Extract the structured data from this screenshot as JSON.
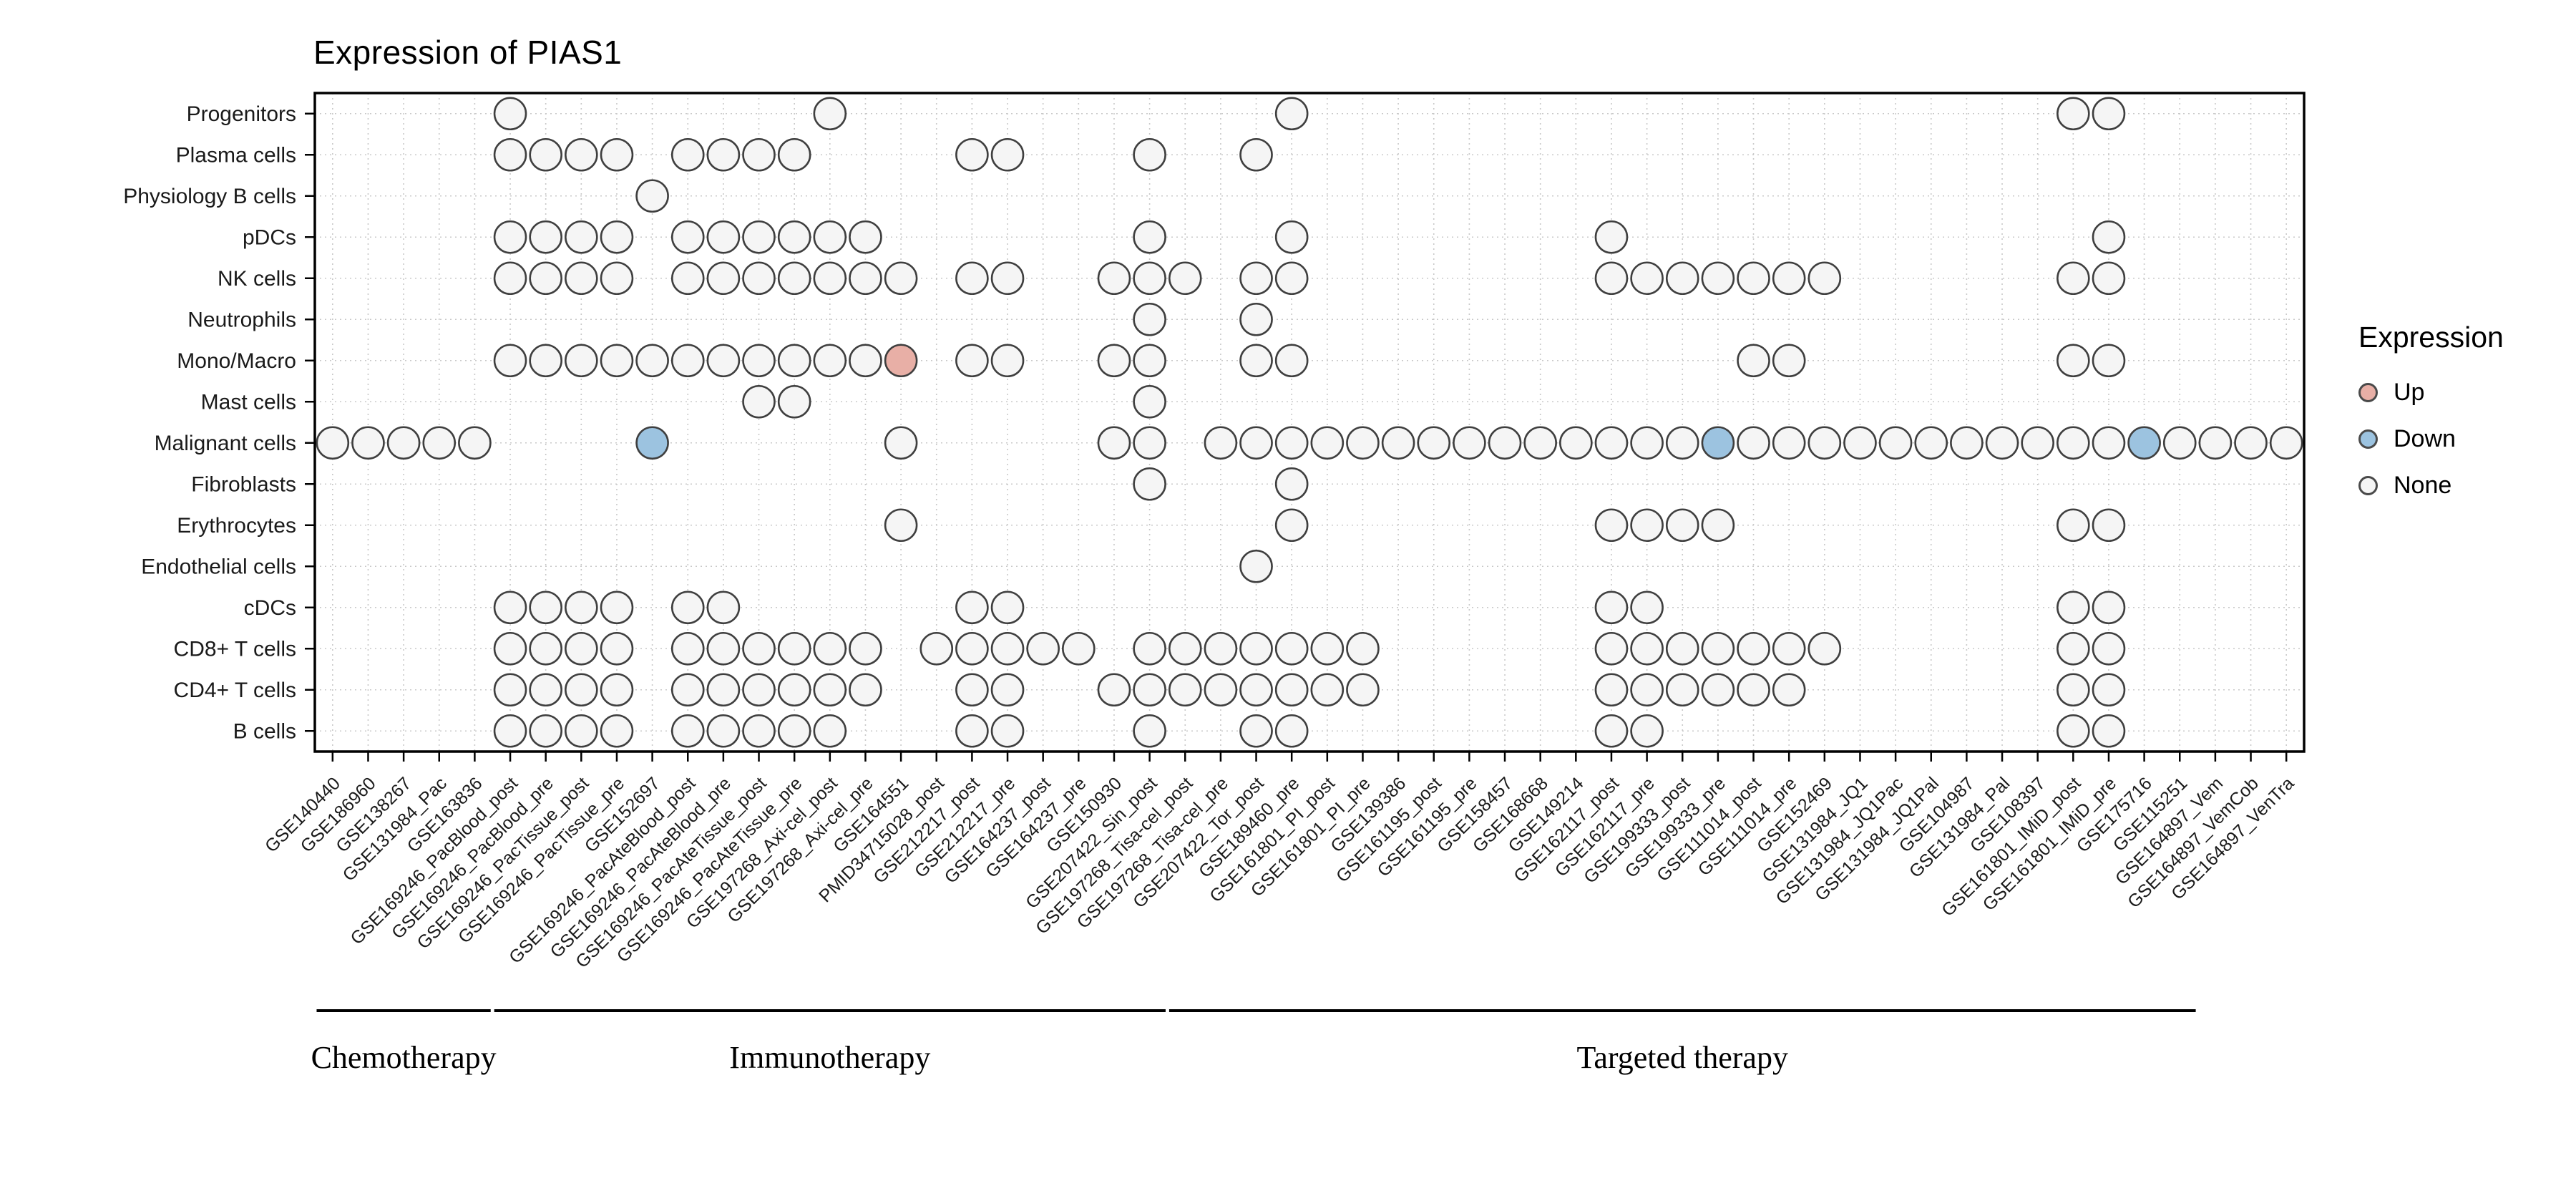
{
  "chart_data": {
    "type": "scatter",
    "subtype": "dot-matrix",
    "title": "Expression of PIAS1",
    "legend": {
      "title": "Expression",
      "items": [
        {
          "label": "Up",
          "key": "up"
        },
        {
          "label": "Down",
          "key": "down"
        },
        {
          "label": "None",
          "key": "none"
        }
      ]
    },
    "rows": [
      "Progenitors",
      "Plasma cells",
      "Physiology B cells",
      "pDCs",
      "NK cells",
      "Neutrophils",
      "Mono/Macro",
      "Mast cells",
      "Malignant cells",
      "Fibroblasts",
      "Erythrocytes",
      "Endothelial cells",
      "cDCs",
      "CD8+ T cells",
      "CD4+ T cells",
      "B cells"
    ],
    "columns": [
      "GSE140440",
      "GSE186960",
      "GSE138267",
      "GSE131984_Pac",
      "GSE163836",
      "GSE169246_PacBlood_post",
      "GSE169246_PacBlood_pre",
      "GSE169246_PacTissue_post",
      "GSE169246_PacTissue_pre",
      "GSE152697",
      "GSE169246_PacAteBlood_post",
      "GSE169246_PacAteBlood_pre",
      "GSE169246_PacAteTissue_post",
      "GSE169246_PacAteTissue_pre",
      "GSE197268_Axi-cel_post",
      "GSE197268_Axi-cel_pre",
      "GSE164551",
      "PMID34715028_post",
      "GSE212217_post",
      "GSE212217_pre",
      "GSE164237_post",
      "GSE164237_pre",
      "GSE150930",
      "GSE207422_Sin_post",
      "GSE197268_Tisa-cel_post",
      "GSE197268_Tisa-cel_pre",
      "GSE207422_Tor_post",
      "GSE189460_pre",
      "GSE161801_PI_post",
      "GSE161801_PI_pre",
      "GSE139386",
      "GSE161195_post",
      "GSE161195_pre",
      "GSE158457",
      "GSE168668",
      "GSE149214",
      "GSE162117_post",
      "GSE162117_pre",
      "GSE199333_post",
      "GSE199333_pre",
      "GSE111014_post",
      "GSE111014_pre",
      "GSE152469",
      "GSE131984_JQ1",
      "GSE131984_JQ1Pac",
      "GSE131984_JQ1Pal",
      "GSE104987",
      "GSE131984_Pal",
      "GSE108397",
      "GSE161801_IMiD_post",
      "GSE161801_IMiD_pre",
      "GSE175716",
      "GSE115251",
      "GSE164897_Vem",
      "GSE164897_VemCob",
      "GSE164897_VenTra"
    ],
    "groups": [
      {
        "label": "Chemotherapy",
        "start": 0,
        "end": 4
      },
      {
        "label": "Immunotherapy",
        "start": 5,
        "end": 23
      },
      {
        "label": "Targeted therapy",
        "start": 24,
        "end": 52
      }
    ],
    "dots_by_row": {
      "Progenitors": [
        5,
        14,
        27,
        49,
        50
      ],
      "Plasma cells": [
        5,
        6,
        7,
        8,
        10,
        11,
        12,
        13,
        18,
        19,
        23,
        26
      ],
      "Physiology B cells": [
        9
      ],
      "pDCs": [
        5,
        6,
        7,
        8,
        10,
        11,
        12,
        13,
        14,
        15,
        23,
        27,
        36,
        50
      ],
      "NK cells": [
        5,
        6,
        7,
        8,
        10,
        11,
        12,
        13,
        14,
        15,
        16,
        18,
        19,
        22,
        23,
        24,
        26,
        27,
        36,
        37,
        38,
        39,
        40,
        41,
        42,
        49,
        50
      ],
      "Neutrophils": [
        23,
        26
      ],
      "Mono/Macro": [
        5,
        6,
        7,
        8,
        9,
        10,
        11,
        12,
        13,
        14,
        15,
        16,
        18,
        19,
        22,
        23,
        26,
        27,
        40,
        41,
        49,
        50
      ],
      "Mast cells": [
        12,
        13,
        23
      ],
      "Malignant cells": [
        0,
        1,
        2,
        3,
        4,
        9,
        16,
        22,
        23,
        25,
        26,
        27,
        28,
        29,
        30,
        31,
        32,
        33,
        34,
        35,
        36,
        37,
        38,
        39,
        40,
        41,
        42,
        43,
        44,
        45,
        46,
        47,
        48,
        49,
        50,
        51,
        52,
        53,
        54,
        55
      ],
      "Fibroblasts": [
        23,
        27
      ],
      "Erythrocytes": [
        16,
        27,
        36,
        37,
        38,
        39,
        49,
        50
      ],
      "Endothelial cells": [
        26
      ],
      "cDCs": [
        5,
        6,
        7,
        8,
        10,
        11,
        18,
        19,
        36,
        37,
        49,
        50
      ],
      "CD8+ T cells": [
        5,
        6,
        7,
        8,
        10,
        11,
        12,
        13,
        14,
        15,
        17,
        18,
        19,
        20,
        21,
        23,
        24,
        25,
        26,
        27,
        28,
        29,
        36,
        37,
        38,
        39,
        40,
        41,
        42,
        49,
        50
      ],
      "CD4+ T cells": [
        5,
        6,
        7,
        8,
        10,
        11,
        12,
        13,
        14,
        15,
        18,
        19,
        22,
        23,
        24,
        25,
        26,
        27,
        28,
        29,
        36,
        37,
        38,
        39,
        40,
        41,
        49,
        50
      ],
      "B cells": [
        5,
        6,
        7,
        8,
        10,
        11,
        12,
        13,
        14,
        18,
        19,
        23,
        26,
        27,
        36,
        37,
        49,
        50
      ]
    },
    "highlights": [
      {
        "row": "Mono/Macro",
        "column": "GSE164551",
        "direction": "Up"
      },
      {
        "row": "Malignant cells",
        "column": "GSE152697",
        "direction": "Down"
      },
      {
        "row": "Malignant cells",
        "column": "GSE199333_pre",
        "direction": "Down"
      },
      {
        "row": "Malignant cells",
        "column": "GSE175716",
        "direction": "Down"
      }
    ],
    "colors": {
      "up_fill": "#E8AFA6",
      "down_fill": "#9CC3E0",
      "none_fill": "#F5F5F5",
      "dot_stroke": "#3F3F3F",
      "grid": "#C9C9C9",
      "panel_border": "#000000"
    }
  }
}
